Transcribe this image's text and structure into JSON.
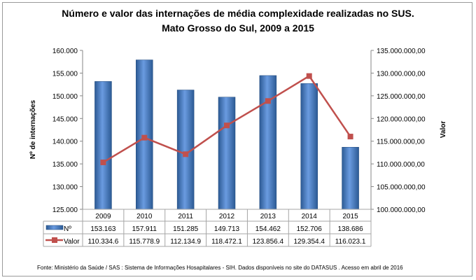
{
  "chart_data": {
    "type": "bar+line",
    "title": [
      "Número e valor das internações de média complexidade realizadas no SUS.",
      "Mato Grosso do Sul, 2009 a 2015"
    ],
    "ylabel": "Nº de internações",
    "y2label": "Valor",
    "categories": [
      "2009",
      "2010",
      "2011",
      "2012",
      "2013",
      "2014",
      "2015"
    ],
    "ylim": [
      125000,
      160000
    ],
    "y2lim": [
      100000000,
      135000000
    ],
    "yticks": [
      "125.000",
      "130.000",
      "135.000",
      "140.000",
      "145.000",
      "150.000",
      "155.000",
      "160.000"
    ],
    "y2ticks": [
      "100.000.000,00",
      "105.000.000,00",
      "110.000.000,00",
      "115.000.000,00",
      "120.000.000,00",
      "125.000.000,00",
      "130.000.000,00",
      "135.000.000,00"
    ],
    "series": [
      {
        "name": "Nº",
        "type": "bar",
        "color": "#4f81bd",
        "values": [
          153163,
          157911,
          151285,
          149713,
          154462,
          152706,
          138686
        ],
        "labels": [
          "153.163",
          "157.911",
          "151.285",
          "149.713",
          "154.462",
          "152.706",
          "138.686"
        ]
      },
      {
        "name": "Valor",
        "type": "line",
        "axis": "right",
        "color": "#c0504d",
        "values": [
          110334600,
          115778900,
          112134900,
          118472100,
          123856400,
          129354400,
          116023100
        ],
        "labels": [
          "110.334.6",
          "115.778.9",
          "112.134.9",
          "118.472.1",
          "123.856.4",
          "129.354.4",
          "116.023.1"
        ]
      }
    ],
    "grid": false,
    "legend": "data-table"
  },
  "footer": "Fonte:  Ministério da Saúde / SAS : Sistema de Informações Hosapitalares - SIH. Dados disponíveis no site do DATASUS . Acesso em abril de 2016"
}
